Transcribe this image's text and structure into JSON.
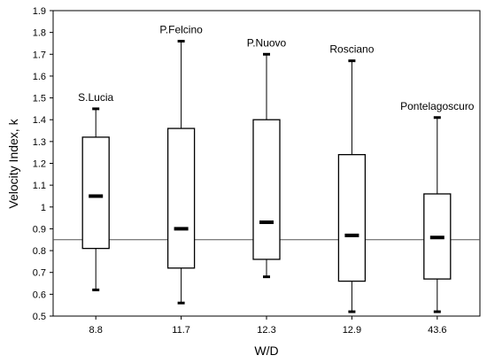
{
  "chart_data": {
    "type": "boxplot",
    "xlabel": "W/D",
    "ylabel": "Velocity Index, k",
    "ylim": [
      0.5,
      1.9
    ],
    "yticks": [
      "0.5",
      "0.6",
      "0.7",
      "0.8",
      "0.9",
      "1",
      "1.1",
      "1.2",
      "1.3",
      "1.4",
      "1.5",
      "1.6",
      "1.7",
      "1.8",
      "1.9"
    ],
    "reference_line": 0.85,
    "grid": false,
    "categories": [
      "8.8",
      "11.7",
      "12.3",
      "12.9",
      "43.6"
    ],
    "boxes": [
      {
        "label": "S.Lucia",
        "category": "8.8",
        "min": 0.62,
        "q1": 0.81,
        "median": 1.05,
        "q3": 1.32,
        "max": 1.45
      },
      {
        "label": "P.Felcino",
        "category": "11.7",
        "min": 0.56,
        "q1": 0.72,
        "median": 0.9,
        "q3": 1.36,
        "max": 1.76
      },
      {
        "label": "P.Nuovo",
        "category": "12.3",
        "min": 0.68,
        "q1": 0.76,
        "median": 0.93,
        "q3": 1.4,
        "max": 1.7
      },
      {
        "label": "Rosciano",
        "category": "12.9",
        "min": 0.52,
        "q1": 0.66,
        "median": 0.87,
        "q3": 1.24,
        "max": 1.67
      },
      {
        "label": "Pontelagoscuro",
        "category": "43.6",
        "min": 0.52,
        "q1": 0.67,
        "median": 0.86,
        "q3": 1.06,
        "max": 1.41
      }
    ]
  }
}
